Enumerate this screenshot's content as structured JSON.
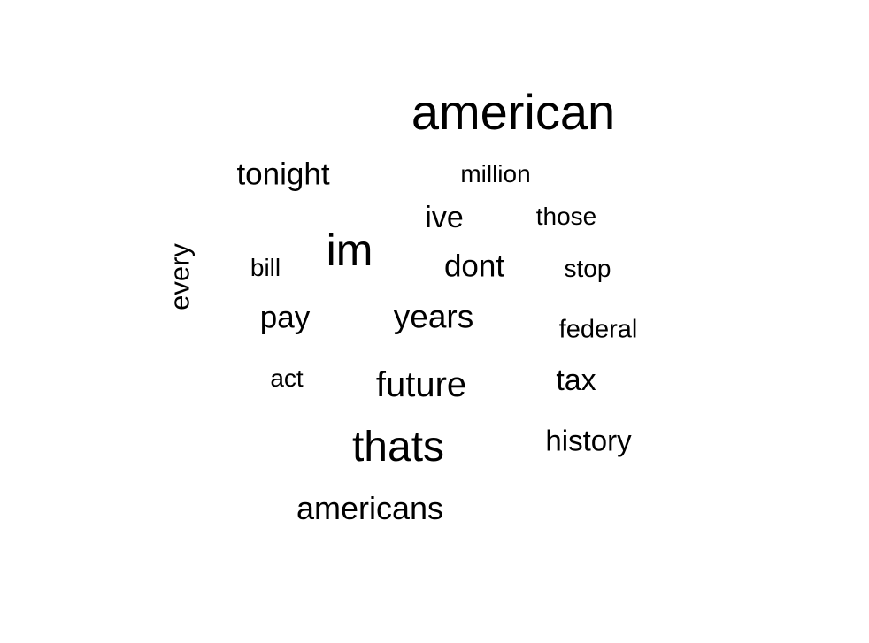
{
  "chart_data": {
    "type": "wordcloud",
    "words": [
      {
        "text": "american",
        "weight": 56
      },
      {
        "text": "im",
        "weight": 50
      },
      {
        "text": "thats",
        "weight": 48
      },
      {
        "text": "future",
        "weight": 40
      },
      {
        "text": "years",
        "weight": 37
      },
      {
        "text": "americans",
        "weight": 36
      },
      {
        "text": "tonight",
        "weight": 35
      },
      {
        "text": "dont",
        "weight": 35
      },
      {
        "text": "pay",
        "weight": 35
      },
      {
        "text": "ive",
        "weight": 34
      },
      {
        "text": "tax",
        "weight": 34
      },
      {
        "text": "history",
        "weight": 33
      },
      {
        "text": "every",
        "weight": 31
      },
      {
        "text": "federal",
        "weight": 29
      },
      {
        "text": "million",
        "weight": 28
      },
      {
        "text": "those",
        "weight": 28
      },
      {
        "text": "stop",
        "weight": 28
      },
      {
        "text": "bill",
        "weight": 28
      },
      {
        "text": "act",
        "weight": 28
      }
    ],
    "color": "#000000"
  }
}
